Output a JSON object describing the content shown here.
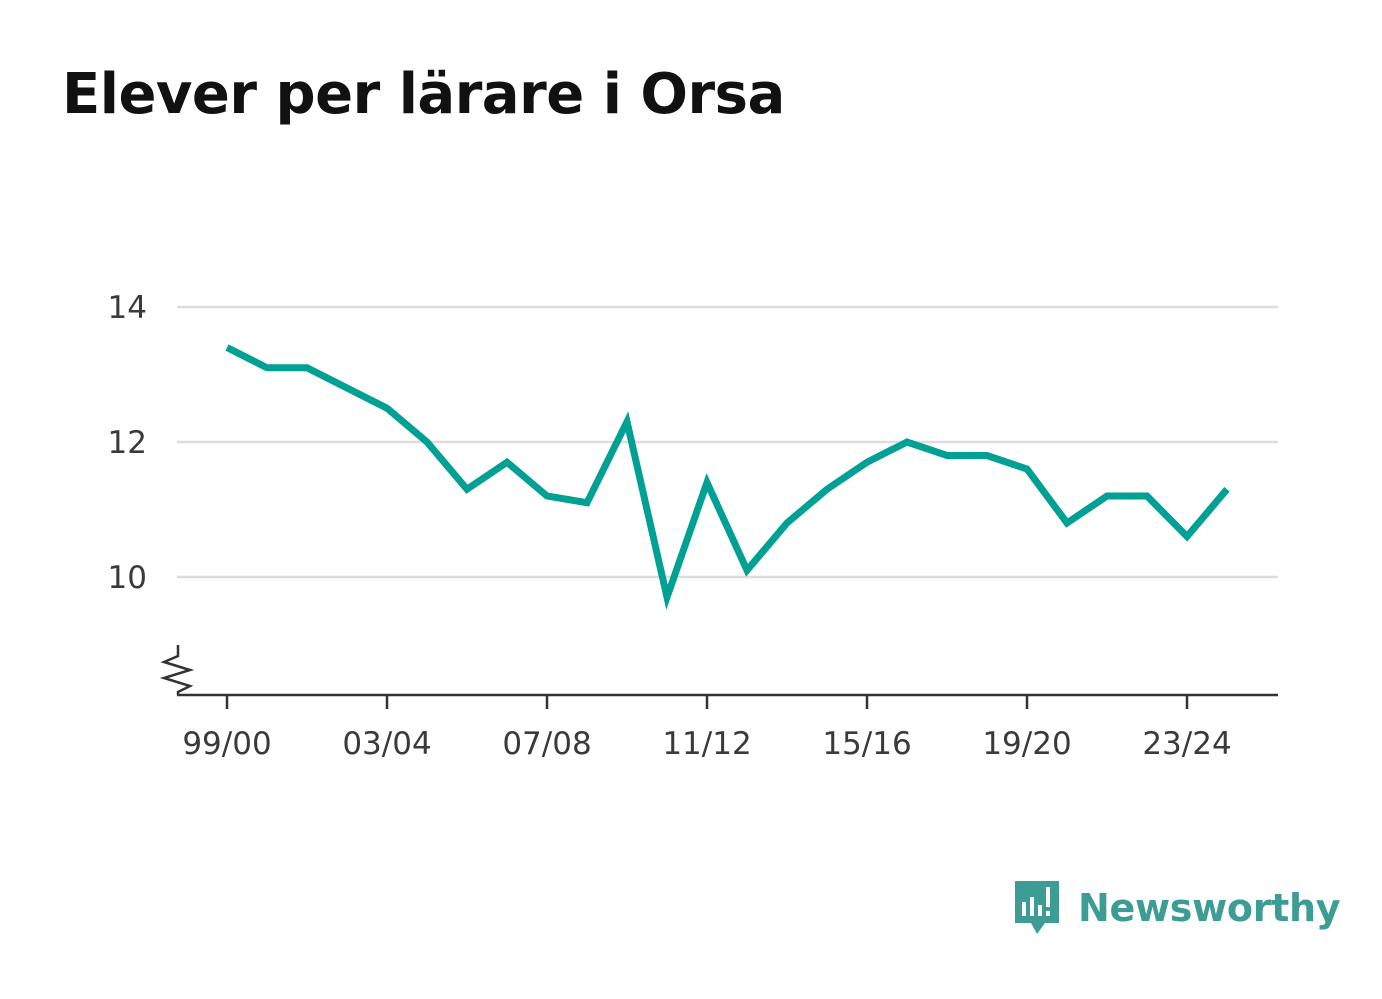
{
  "title": "Elever per lärare i Orsa",
  "brand": {
    "name": "Newsworthy",
    "icon": "bar-chart-icon",
    "color": "#3d9d94"
  },
  "colors": {
    "line": "#00a095",
    "grid": "#dddddd",
    "axis": "#333333"
  },
  "chart_data": {
    "type": "line",
    "title": "Elever per lärare i Orsa",
    "xlabel": "",
    "ylabel": "",
    "categories": [
      "99/00",
      "00/01",
      "01/02",
      "02/03",
      "03/04",
      "04/05",
      "05/06",
      "06/07",
      "07/08",
      "08/09",
      "09/10",
      "10/11",
      "11/12",
      "12/13",
      "13/14",
      "14/15",
      "15/16",
      "16/17",
      "17/18",
      "18/19",
      "19/20",
      "20/21",
      "21/22",
      "22/23",
      "23/24",
      "24/25"
    ],
    "x_tick_labels": [
      "99/00",
      "03/04",
      "07/08",
      "11/12",
      "15/16",
      "19/20",
      "23/24"
    ],
    "y_tick_labels": [
      "10",
      "12",
      "14"
    ],
    "series": [
      {
        "values": [
          13.4,
          13.1,
          13.1,
          12.8,
          12.5,
          12.0,
          11.3,
          11.7,
          11.2,
          11.1,
          12.3,
          9.7,
          11.4,
          10.1,
          10.8,
          11.3,
          11.7,
          12.0,
          11.8,
          11.8,
          11.6,
          10.8,
          11.2,
          11.2,
          10.6,
          11.3
        ]
      }
    ],
    "ylim": [
      8.2,
      14
    ],
    "y_axis_break": true,
    "grid": true,
    "legend": "none"
  }
}
